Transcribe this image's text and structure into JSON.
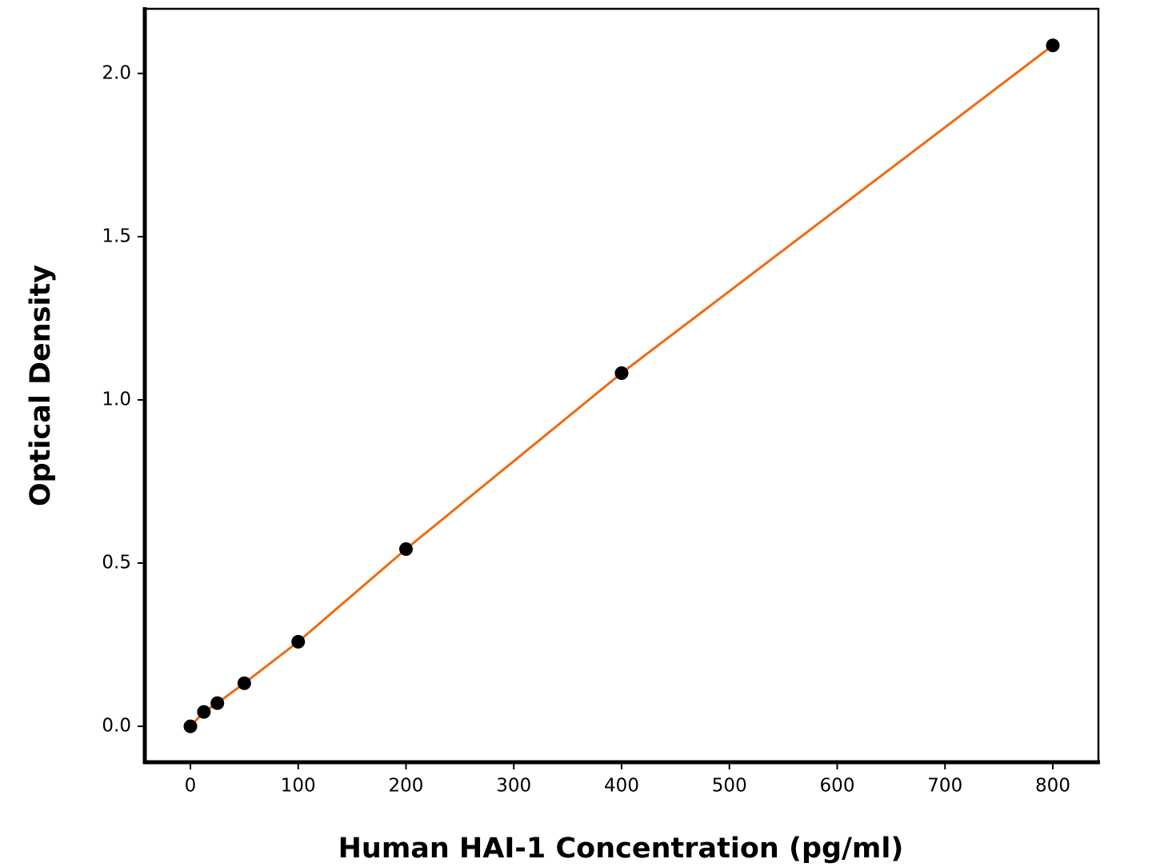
{
  "chart_data": {
    "type": "scatter",
    "x_label": "Human HAI-1 Concentration (pg/ml)",
    "y_label": "Optical Density",
    "x": [
      0,
      12.5,
      25,
      50,
      100,
      200,
      400,
      800
    ],
    "values": [
      0.0,
      0.044,
      0.071,
      0.132,
      0.259,
      0.543,
      1.082,
      2.086
    ],
    "color": "#000000",
    "line_color": "#ef6a10",
    "xlim": [
      -42.3,
      842.3
    ],
    "ylim": [
      -0.11,
      2.198
    ],
    "xticks": [
      0,
      100,
      200,
      300,
      400,
      500,
      600,
      700,
      800
    ],
    "yticks": [
      {
        "value": 0,
        "label": "0.0"
      },
      0.5,
      {
        "value": 1,
        "label": "1.0"
      },
      1.5,
      {
        "value": 2,
        "label": "2.0"
      }
    ]
  }
}
